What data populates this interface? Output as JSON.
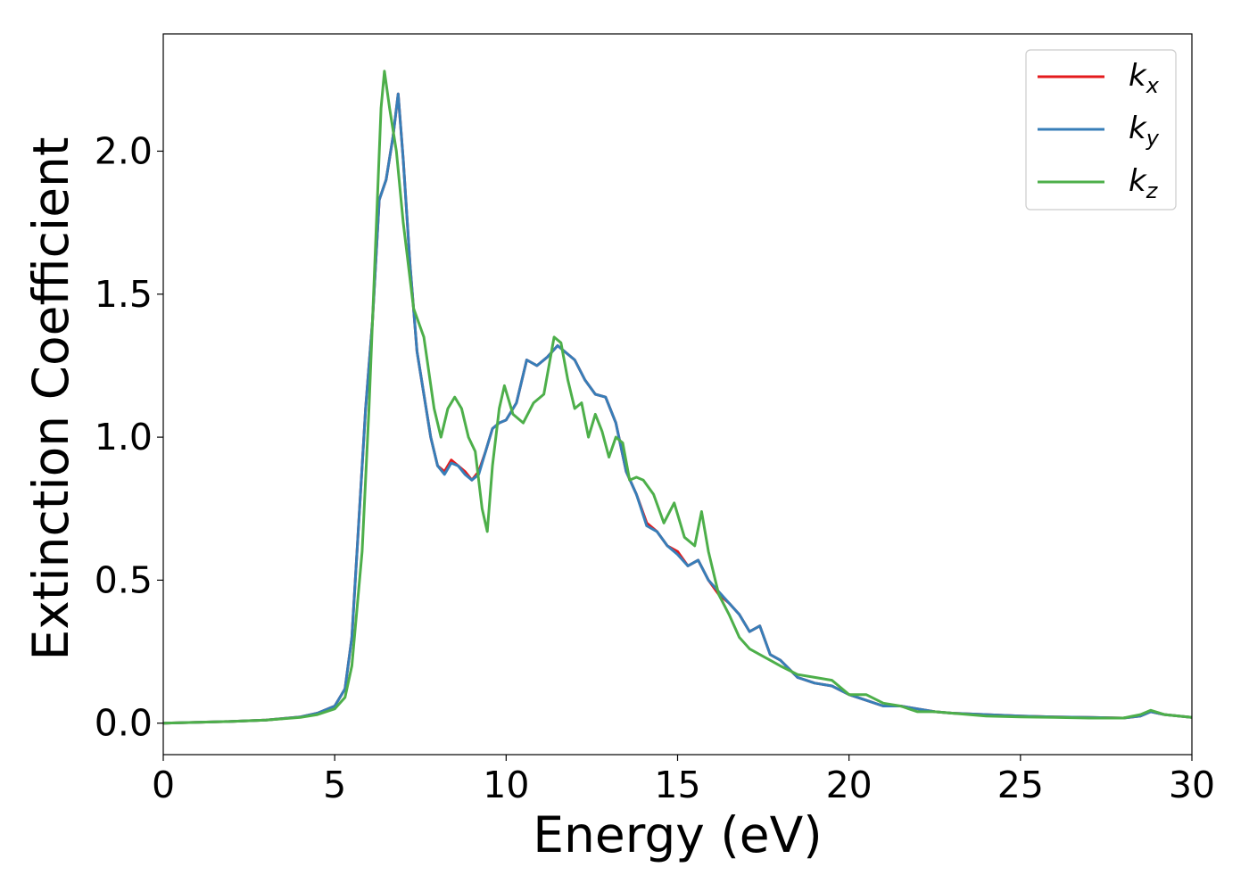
{
  "chart_data": {
    "type": "line",
    "title": "",
    "xlabel": "Energy (eV)",
    "ylabel": "Extinction Coefficient",
    "xlim": [
      0,
      30
    ],
    "ylim": [
      -0.11,
      2.41
    ],
    "xticks": [
      "0",
      "5",
      "10",
      "15",
      "20",
      "25",
      "30"
    ],
    "yticks": [
      "0.0",
      "0.5",
      "1.0",
      "1.5",
      "2.0"
    ],
    "grid": false,
    "legend_position": "top-right",
    "series": [
      {
        "name": "k_x",
        "legend_main": "k",
        "legend_sub": "x",
        "color": "#e41a1c",
        "x": [
          0,
          1,
          2,
          3,
          4,
          4.5,
          5,
          5.3,
          5.5,
          5.7,
          5.9,
          6.1,
          6.3,
          6.5,
          6.7,
          6.85,
          7.0,
          7.2,
          7.4,
          7.6,
          7.8,
          8.0,
          8.2,
          8.4,
          8.6,
          8.8,
          9.0,
          9.2,
          9.4,
          9.6,
          9.8,
          10.0,
          10.3,
          10.6,
          10.9,
          11.2,
          11.5,
          11.7,
          12.0,
          12.3,
          12.6,
          12.9,
          13.2,
          13.5,
          13.8,
          14.1,
          14.4,
          14.7,
          15.0,
          15.3,
          15.6,
          15.9,
          16.2,
          16.5,
          16.8,
          17.1,
          17.4,
          17.7,
          18.0,
          18.5,
          19.0,
          19.5,
          20.0,
          20.5,
          21.0,
          21.5,
          22.0,
          22.5,
          23,
          24,
          25,
          26,
          27,
          28,
          28.5,
          28.8,
          29.2,
          30
        ],
        "y": [
          0.0,
          0.003,
          0.006,
          0.011,
          0.022,
          0.035,
          0.06,
          0.12,
          0.3,
          0.7,
          1.1,
          1.4,
          1.83,
          1.9,
          2.05,
          2.2,
          1.97,
          1.6,
          1.3,
          1.15,
          1.0,
          0.9,
          0.88,
          0.92,
          0.9,
          0.88,
          0.85,
          0.88,
          0.95,
          1.03,
          1.05,
          1.06,
          1.12,
          1.27,
          1.25,
          1.28,
          1.32,
          1.3,
          1.27,
          1.2,
          1.15,
          1.14,
          1.05,
          0.88,
          0.8,
          0.7,
          0.67,
          0.62,
          0.6,
          0.55,
          0.57,
          0.5,
          0.45,
          0.42,
          0.38,
          0.32,
          0.34,
          0.24,
          0.22,
          0.16,
          0.14,
          0.13,
          0.1,
          0.08,
          0.06,
          0.06,
          0.05,
          0.04,
          0.035,
          0.03,
          0.025,
          0.022,
          0.02,
          0.018,
          0.025,
          0.04,
          0.03,
          0.02
        ]
      },
      {
        "name": "k_y",
        "legend_main": "k",
        "legend_sub": "y",
        "color": "#377eb8",
        "x": [
          0,
          1,
          2,
          3,
          4,
          4.5,
          5,
          5.3,
          5.5,
          5.7,
          5.9,
          6.1,
          6.3,
          6.5,
          6.7,
          6.85,
          7.0,
          7.2,
          7.4,
          7.6,
          7.8,
          8.0,
          8.2,
          8.4,
          8.6,
          8.8,
          9.0,
          9.2,
          9.4,
          9.6,
          9.8,
          10.0,
          10.3,
          10.6,
          10.9,
          11.2,
          11.5,
          11.7,
          12.0,
          12.3,
          12.6,
          12.9,
          13.2,
          13.5,
          13.8,
          14.1,
          14.4,
          14.7,
          15.0,
          15.3,
          15.6,
          15.9,
          16.2,
          16.5,
          16.8,
          17.1,
          17.4,
          17.7,
          18.0,
          18.5,
          19.0,
          19.5,
          20.0,
          20.5,
          21.0,
          21.5,
          22.0,
          22.5,
          23,
          24,
          25,
          26,
          27,
          28,
          28.5,
          28.8,
          29.2,
          30
        ],
        "y": [
          0.0,
          0.003,
          0.006,
          0.011,
          0.022,
          0.035,
          0.06,
          0.12,
          0.3,
          0.7,
          1.1,
          1.4,
          1.83,
          1.9,
          2.05,
          2.2,
          1.97,
          1.6,
          1.3,
          1.15,
          1.0,
          0.9,
          0.87,
          0.91,
          0.9,
          0.87,
          0.85,
          0.87,
          0.95,
          1.03,
          1.05,
          1.06,
          1.12,
          1.27,
          1.25,
          1.28,
          1.32,
          1.3,
          1.27,
          1.2,
          1.15,
          1.14,
          1.05,
          0.88,
          0.8,
          0.69,
          0.67,
          0.62,
          0.59,
          0.55,
          0.57,
          0.5,
          0.46,
          0.42,
          0.38,
          0.32,
          0.34,
          0.24,
          0.22,
          0.16,
          0.14,
          0.13,
          0.1,
          0.08,
          0.06,
          0.06,
          0.05,
          0.04,
          0.035,
          0.03,
          0.025,
          0.022,
          0.02,
          0.018,
          0.025,
          0.04,
          0.03,
          0.02
        ]
      },
      {
        "name": "k_z",
        "legend_main": "k",
        "legend_sub": "z",
        "color": "#4daf4a",
        "x": [
          0,
          1,
          2,
          3,
          4,
          4.5,
          5,
          5.3,
          5.5,
          5.8,
          6.0,
          6.2,
          6.35,
          6.45,
          6.6,
          6.8,
          7.0,
          7.3,
          7.6,
          7.9,
          8.1,
          8.3,
          8.5,
          8.7,
          8.9,
          9.1,
          9.3,
          9.45,
          9.6,
          9.8,
          9.95,
          10.2,
          10.5,
          10.8,
          11.1,
          11.4,
          11.6,
          11.8,
          12.0,
          12.2,
          12.4,
          12.6,
          12.8,
          13.0,
          13.2,
          13.4,
          13.6,
          13.8,
          14.0,
          14.3,
          14.6,
          14.9,
          15.2,
          15.5,
          15.7,
          15.9,
          16.2,
          16.5,
          16.8,
          17.1,
          17.4,
          17.7,
          18.0,
          18.5,
          19.0,
          19.5,
          20.0,
          20.5,
          21.0,
          21.5,
          22.0,
          22.5,
          23,
          24,
          25,
          26,
          27,
          28,
          28.5,
          28.8,
          29.2,
          30
        ],
        "y": [
          0.0,
          0.003,
          0.006,
          0.011,
          0.02,
          0.03,
          0.05,
          0.09,
          0.2,
          0.6,
          1.1,
          1.7,
          2.15,
          2.28,
          2.15,
          2.0,
          1.75,
          1.45,
          1.35,
          1.1,
          1.0,
          1.1,
          1.14,
          1.1,
          1.0,
          0.95,
          0.75,
          0.67,
          0.9,
          1.1,
          1.18,
          1.08,
          1.05,
          1.12,
          1.15,
          1.35,
          1.33,
          1.2,
          1.1,
          1.12,
          1.0,
          1.08,
          1.02,
          0.93,
          1.0,
          0.98,
          0.85,
          0.86,
          0.85,
          0.8,
          0.7,
          0.77,
          0.65,
          0.62,
          0.74,
          0.6,
          0.45,
          0.38,
          0.3,
          0.26,
          0.24,
          0.22,
          0.2,
          0.17,
          0.16,
          0.15,
          0.1,
          0.1,
          0.07,
          0.06,
          0.04,
          0.04,
          0.035,
          0.025,
          0.022,
          0.02,
          0.018,
          0.018,
          0.03,
          0.045,
          0.03,
          0.02
        ]
      }
    ]
  }
}
